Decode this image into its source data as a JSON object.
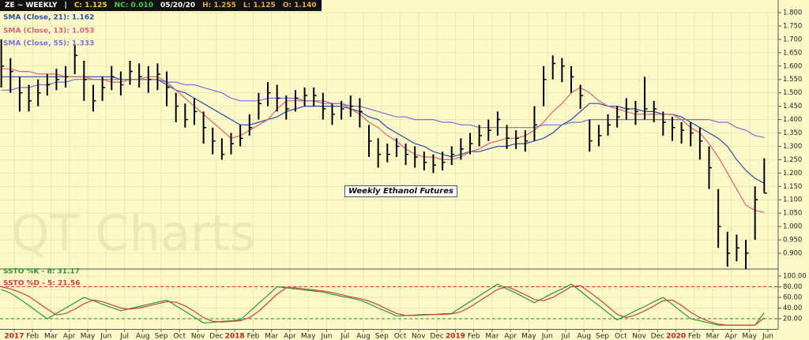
{
  "header": [
    {
      "text": "ZE ~ WEEKLY",
      "color": "#ffffff"
    },
    {
      "text": "|",
      "color": "#ffffff"
    },
    {
      "text": "C: 1.125",
      "color": "#f2d230"
    },
    {
      "text": "NC: 0.010",
      "color": "#3ad13a"
    },
    {
      "text": "05/20/20",
      "color": "#ffffff"
    },
    {
      "text": "H: 1.255",
      "color": "#f0a830"
    },
    {
      "text": "L: 1.125",
      "color": "#f0a830"
    },
    {
      "text": "O: 1.140",
      "color": "#f0a830"
    }
  ],
  "chart_data": [
    {
      "type": "ohlc",
      "annotation": "Weekly Ethanol Futures",
      "watermark": "QT Charts",
      "color": "#000000",
      "xlim": [
        -0.77,
        41.56
      ],
      "ylim": [
        0.844,
        1.8
      ],
      "yticks": [
        {
          "value": 0.9,
          "label": "0.900"
        },
        {
          "value": 0.95,
          "label": "0.950"
        },
        {
          "value": 1.0,
          "label": "1.000"
        },
        {
          "value": 1.05,
          "label": "1.050"
        },
        {
          "value": 1.1,
          "label": "1.100"
        },
        {
          "value": 1.15,
          "label": "1.150"
        },
        {
          "value": 1.2,
          "label": "1.200"
        },
        {
          "value": 1.25,
          "label": "1.250"
        },
        {
          "value": 1.3,
          "label": "1.300"
        },
        {
          "value": 1.35,
          "label": "1.350"
        },
        {
          "value": 1.4,
          "label": "1.400"
        },
        {
          "value": 1.45,
          "label": "1.450"
        },
        {
          "value": 1.5,
          "label": "1.500"
        },
        {
          "value": 1.55,
          "label": "1.550"
        },
        {
          "value": 1.6,
          "label": "1.600"
        },
        {
          "value": 1.65,
          "label": "1.650"
        },
        {
          "value": 1.7,
          "label": "1.700"
        },
        {
          "value": 1.75,
          "label": "1.750"
        },
        {
          "value": 1.8,
          "label": "1.800"
        }
      ],
      "x": [
        -0.7,
        -0.2,
        0.3,
        0.8,
        1.3,
        1.8,
        2.3,
        2.8,
        3.3,
        3.8,
        4.3,
        4.8,
        5.3,
        5.8,
        6.3,
        6.8,
        7.3,
        7.8,
        8.3,
        8.8,
        9.3,
        9.8,
        10.3,
        10.8,
        11.3,
        11.8,
        12.3,
        12.8,
        13.3,
        13.8,
        14.3,
        14.8,
        15.3,
        15.8,
        16.3,
        16.8,
        17.3,
        17.8,
        18.3,
        18.8,
        19.3,
        19.8,
        20.3,
        20.8,
        21.3,
        21.8,
        22.3,
        22.8,
        23.3,
        23.8,
        24.3,
        24.8,
        25.3,
        25.8,
        26.3,
        26.8,
        27.3,
        27.8,
        28.3,
        28.8,
        29.3,
        29.8,
        30.3,
        30.8,
        31.3,
        31.8,
        32.3,
        32.8,
        33.3,
        33.8,
        34.3,
        34.8,
        35.3,
        35.8,
        36.3,
        36.8,
        37.3,
        37.8,
        38.3,
        38.8,
        39.3,
        39.8,
        40.3,
        40.8
      ],
      "high": [
        1.7,
        1.63,
        1.56,
        1.53,
        1.55,
        1.57,
        1.59,
        1.6,
        1.68,
        1.62,
        1.53,
        1.56,
        1.6,
        1.58,
        1.62,
        1.61,
        1.6,
        1.61,
        1.58,
        1.5,
        1.46,
        1.48,
        1.43,
        1.37,
        1.33,
        1.35,
        1.38,
        1.42,
        1.5,
        1.54,
        1.53,
        1.49,
        1.51,
        1.52,
        1.52,
        1.5,
        1.46,
        1.47,
        1.49,
        1.48,
        1.38,
        1.33,
        1.31,
        1.33,
        1.31,
        1.3,
        1.28,
        1.27,
        1.28,
        1.3,
        1.33,
        1.35,
        1.38,
        1.4,
        1.43,
        1.38,
        1.36,
        1.36,
        1.45,
        1.6,
        1.64,
        1.63,
        1.6,
        1.53,
        1.4,
        1.38,
        1.42,
        1.45,
        1.48,
        1.47,
        1.56,
        1.47,
        1.43,
        1.41,
        1.39,
        1.39,
        1.37,
        1.3,
        1.14,
        0.98,
        0.97,
        0.95,
        1.15,
        1.255
      ],
      "low": [
        1.52,
        1.5,
        1.43,
        1.43,
        1.45,
        1.49,
        1.51,
        1.52,
        1.57,
        1.47,
        1.43,
        1.47,
        1.51,
        1.49,
        1.53,
        1.52,
        1.5,
        1.51,
        1.45,
        1.39,
        1.37,
        1.38,
        1.31,
        1.27,
        1.25,
        1.27,
        1.3,
        1.34,
        1.4,
        1.45,
        1.43,
        1.4,
        1.43,
        1.45,
        1.45,
        1.4,
        1.38,
        1.4,
        1.41,
        1.37,
        1.26,
        1.22,
        1.24,
        1.26,
        1.23,
        1.22,
        1.21,
        1.2,
        1.21,
        1.23,
        1.25,
        1.27,
        1.3,
        1.32,
        1.34,
        1.29,
        1.29,
        1.28,
        1.32,
        1.45,
        1.55,
        1.54,
        1.5,
        1.44,
        1.28,
        1.3,
        1.34,
        1.37,
        1.4,
        1.38,
        1.4,
        1.39,
        1.34,
        1.32,
        1.31,
        1.3,
        1.25,
        1.14,
        0.92,
        0.85,
        0.87,
        0.84,
        0.95,
        1.125
      ],
      "close": [
        1.6,
        1.58,
        1.5,
        1.47,
        1.5,
        1.53,
        1.55,
        1.56,
        1.64,
        1.55,
        1.47,
        1.52,
        1.56,
        1.53,
        1.58,
        1.56,
        1.55,
        1.57,
        1.52,
        1.45,
        1.4,
        1.43,
        1.37,
        1.32,
        1.27,
        1.31,
        1.33,
        1.37,
        1.46,
        1.5,
        1.48,
        1.44,
        1.48,
        1.49,
        1.49,
        1.44,
        1.42,
        1.44,
        1.45,
        1.43,
        1.32,
        1.27,
        1.27,
        1.3,
        1.27,
        1.26,
        1.24,
        1.23,
        1.24,
        1.27,
        1.29,
        1.31,
        1.34,
        1.36,
        1.4,
        1.33,
        1.33,
        1.32,
        1.38,
        1.55,
        1.61,
        1.6,
        1.56,
        1.49,
        1.32,
        1.34,
        1.38,
        1.41,
        1.44,
        1.43,
        1.44,
        1.44,
        1.39,
        1.37,
        1.36,
        1.35,
        1.32,
        1.22,
        1.0,
        0.9,
        0.92,
        0.9,
        1.1,
        1.125
      ],
      "series": [
        {
          "name": "SMA (Close, 21): 1.162",
          "color": "#2c4ea8",
          "values": [
            1.56,
            1.56,
            1.56,
            1.56,
            1.56,
            1.56,
            1.56,
            1.56,
            1.56,
            1.56,
            1.56,
            1.56,
            1.56,
            1.55,
            1.55,
            1.55,
            1.55,
            1.55,
            1.53,
            1.51,
            1.5,
            1.48,
            1.46,
            1.44,
            1.42,
            1.4,
            1.38,
            1.38,
            1.39,
            1.4,
            1.41,
            1.43,
            1.44,
            1.45,
            1.45,
            1.45,
            1.45,
            1.45,
            1.44,
            1.43,
            1.41,
            1.4,
            1.37,
            1.35,
            1.33,
            1.31,
            1.3,
            1.28,
            1.27,
            1.26,
            1.27,
            1.28,
            1.28,
            1.29,
            1.3,
            1.3,
            1.31,
            1.31,
            1.32,
            1.33,
            1.35,
            1.38,
            1.4,
            1.43,
            1.46,
            1.46,
            1.45,
            1.45,
            1.44,
            1.44,
            1.43,
            1.43,
            1.42,
            1.42,
            1.41,
            1.39,
            1.37,
            1.35,
            1.33,
            1.3,
            1.25,
            1.21,
            1.18,
            1.162
          ]
        },
        {
          "name": "SMA (Close, 13): 1.053",
          "color": "#e0607a",
          "values": [
            1.59,
            1.59,
            1.58,
            1.58,
            1.57,
            1.57,
            1.57,
            1.56,
            1.56,
            1.56,
            1.55,
            1.55,
            1.54,
            1.54,
            1.55,
            1.55,
            1.56,
            1.56,
            1.54,
            1.51,
            1.48,
            1.45,
            1.42,
            1.39,
            1.36,
            1.33,
            1.34,
            1.36,
            1.38,
            1.4,
            1.44,
            1.47,
            1.47,
            1.47,
            1.47,
            1.46,
            1.46,
            1.46,
            1.44,
            1.42,
            1.39,
            1.37,
            1.34,
            1.32,
            1.29,
            1.27,
            1.26,
            1.26,
            1.25,
            1.25,
            1.26,
            1.28,
            1.29,
            1.31,
            1.32,
            1.33,
            1.33,
            1.34,
            1.36,
            1.39,
            1.43,
            1.46,
            1.5,
            1.52,
            1.5,
            1.47,
            1.45,
            1.44,
            1.43,
            1.42,
            1.42,
            1.42,
            1.42,
            1.42,
            1.4,
            1.37,
            1.35,
            1.31,
            1.26,
            1.2,
            1.14,
            1.08,
            1.06,
            1.053
          ]
        },
        {
          "name": "SMA (Close, 55): 1.333",
          "color": "#7a6ee0",
          "values": [
            1.51,
            1.51,
            1.52,
            1.52,
            1.53,
            1.53,
            1.54,
            1.54,
            1.55,
            1.55,
            1.55,
            1.55,
            1.55,
            1.55,
            1.55,
            1.55,
            1.55,
            1.55,
            1.54,
            1.54,
            1.53,
            1.53,
            1.52,
            1.51,
            1.5,
            1.48,
            1.47,
            1.47,
            1.47,
            1.48,
            1.48,
            1.48,
            1.48,
            1.47,
            1.47,
            1.47,
            1.46,
            1.46,
            1.45,
            1.45,
            1.44,
            1.43,
            1.42,
            1.41,
            1.41,
            1.4,
            1.4,
            1.4,
            1.39,
            1.39,
            1.38,
            1.38,
            1.37,
            1.37,
            1.37,
            1.37,
            1.37,
            1.37,
            1.37,
            1.38,
            1.38,
            1.38,
            1.39,
            1.39,
            1.4,
            1.4,
            1.4,
            1.4,
            1.4,
            1.4,
            1.4,
            1.4,
            1.4,
            1.4,
            1.4,
            1.4,
            1.4,
            1.4,
            1.39,
            1.39,
            1.37,
            1.36,
            1.34,
            1.333
          ]
        }
      ]
    },
    {
      "type": "line",
      "ylim": [
        0,
        100
      ],
      "yticks": [
        {
          "value": 20,
          "label": "20.00"
        },
        {
          "value": 40,
          "label": "40.00"
        },
        {
          "value": 60,
          "label": "60.00"
        },
        {
          "value": 80,
          "label": "80.00"
        },
        {
          "value": 100,
          "label": "100.00"
        }
      ],
      "reference_lines": [
        {
          "value": 80,
          "color": "#d03030"
        },
        {
          "value": 20,
          "color": "#2a8a2a"
        }
      ],
      "xticks": [
        {
          "value": 0,
          "label": "2017"
        },
        {
          "value": 1,
          "label": "Feb"
        },
        {
          "value": 2,
          "label": "Mar"
        },
        {
          "value": 3,
          "label": "Apr"
        },
        {
          "value": 4,
          "label": "May"
        },
        {
          "value": 5,
          "label": "Jun"
        },
        {
          "value": 6,
          "label": "Jul"
        },
        {
          "value": 7,
          "label": "Aug"
        },
        {
          "value": 8,
          "label": "Sep"
        },
        {
          "value": 9,
          "label": "Oct"
        },
        {
          "value": 10,
          "label": "Nov"
        },
        {
          "value": 11,
          "label": "Dec"
        },
        {
          "value": 12,
          "label": "2018"
        },
        {
          "value": 13,
          "label": "Feb"
        },
        {
          "value": 14,
          "label": "Mar"
        },
        {
          "value": 15,
          "label": "Apr"
        },
        {
          "value": 16,
          "label": "May"
        },
        {
          "value": 17,
          "label": "Jun"
        },
        {
          "value": 18,
          "label": "Jul"
        },
        {
          "value": 19,
          "label": "Aug"
        },
        {
          "value": 20,
          "label": "Sep"
        },
        {
          "value": 21,
          "label": "Oct"
        },
        {
          "value": 22,
          "label": "Nov"
        },
        {
          "value": 23,
          "label": "Dec"
        },
        {
          "value": 24,
          "label": "2019"
        },
        {
          "value": 25,
          "label": "Feb"
        },
        {
          "value": 26,
          "label": "Mar"
        },
        {
          "value": 27,
          "label": "Apr"
        },
        {
          "value": 28,
          "label": "May"
        },
        {
          "value": 29,
          "label": "Jun"
        },
        {
          "value": 30,
          "label": "Jul"
        },
        {
          "value": 31,
          "label": "Aug"
        },
        {
          "value": 32,
          "label": "Sep"
        },
        {
          "value": 33,
          "label": "Oct"
        },
        {
          "value": 34,
          "label": "Nov"
        },
        {
          "value": 35,
          "label": "Dec"
        },
        {
          "value": 36,
          "label": "2020"
        },
        {
          "value": 37,
          "label": "Feb"
        },
        {
          "value": 38,
          "label": "Mar"
        },
        {
          "value": 39,
          "label": "Apr"
        },
        {
          "value": 40,
          "label": "May"
        },
        {
          "value": 41,
          "label": "Jun"
        }
      ],
      "series": [
        {
          "name": "SSTO %K - 8: 31.17",
          "color": "#2a9a2a",
          "values": [
            75,
            68,
            57,
            45,
            32,
            20,
            30,
            40,
            50,
            60,
            54,
            47,
            41,
            35,
            39,
            43,
            47,
            51,
            55,
            44,
            34,
            23,
            12,
            13,
            15,
            16,
            18,
            33,
            49,
            64,
            80,
            78,
            76,
            74,
            72,
            70,
            66,
            62,
            59,
            55,
            48,
            40,
            33,
            25,
            26,
            27,
            28,
            28,
            29,
            30,
            41,
            52,
            63,
            74,
            85,
            76,
            68,
            59,
            50,
            59,
            68,
            76,
            85,
            72,
            58,
            45,
            31,
            18,
            26,
            35,
            43,
            52,
            60,
            47,
            33,
            20,
            16,
            12,
            8,
            8,
            8,
            8,
            8,
            31.17
          ]
        },
        {
          "name": "SSTO %D - 5: 21.56",
          "color": "#d04040",
          "values": [
            80,
            76,
            70,
            62,
            50,
            38,
            27,
            30,
            38,
            48,
            55,
            52,
            46,
            40,
            38,
            40,
            44,
            48,
            52,
            51,
            44,
            34,
            22,
            15,
            14,
            15,
            16,
            22,
            34,
            50,
            66,
            78,
            78,
            76,
            74,
            72,
            69,
            65,
            61,
            58,
            53,
            46,
            38,
            30,
            26,
            26,
            27,
            28,
            28,
            29,
            33,
            42,
            53,
            64,
            75,
            80,
            73,
            65,
            56,
            54,
            60,
            70,
            80,
            82,
            70,
            57,
            43,
            28,
            22,
            27,
            35,
            44,
            54,
            55,
            45,
            32,
            22,
            15,
            10,
            8,
            8,
            8,
            8,
            21.56
          ]
        }
      ]
    }
  ]
}
